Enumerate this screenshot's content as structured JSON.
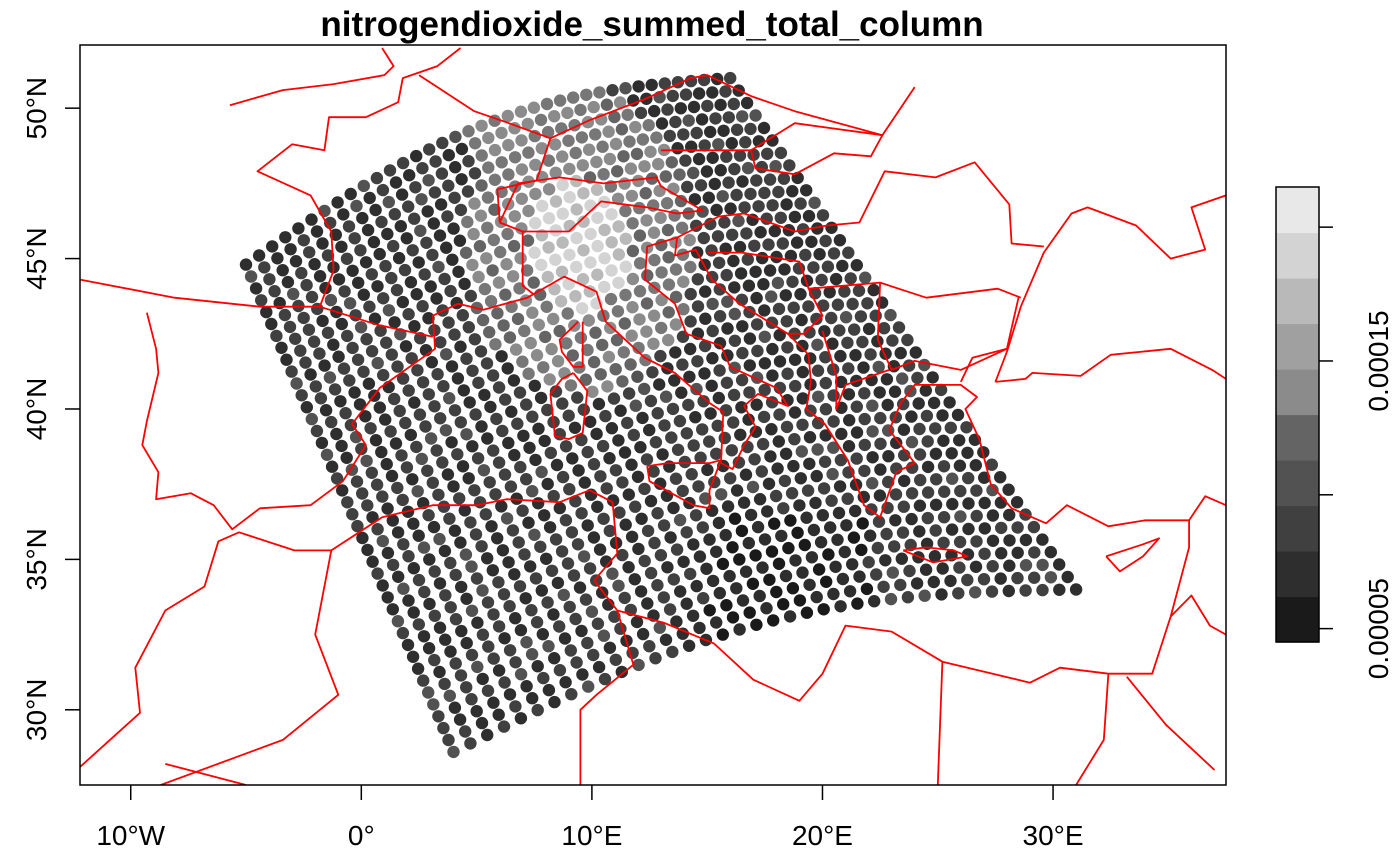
{
  "plot": {
    "title": "nitrogendioxide_summed_total_column",
    "x_ticks": [
      {
        "value": -10,
        "label": "10°W"
      },
      {
        "value": 0,
        "label": "0°"
      },
      {
        "value": 10,
        "label": "10°E"
      },
      {
        "value": 20,
        "label": "20°E"
      },
      {
        "value": 30,
        "label": "30°E"
      }
    ],
    "y_ticks": [
      {
        "value": 30,
        "label": "30°N"
      },
      {
        "value": 35,
        "label": "35°N"
      },
      {
        "value": 40,
        "label": "40°N"
      },
      {
        "value": 45,
        "label": "45°N"
      },
      {
        "value": 50,
        "label": "50°N"
      }
    ],
    "colorbar": {
      "ticks": [
        {
          "value": 5e-05,
          "label": "0.00005"
        },
        {
          "value": 0.0001,
          "label": ""
        },
        {
          "value": 0.00015,
          "label": "0.00015"
        },
        {
          "value": 0.0002,
          "label": ""
        }
      ]
    }
  },
  "chart_data": {
    "type": "scatter",
    "title": "nitrogendioxide_summed_total_column",
    "xlabel": "",
    "ylabel": "",
    "xlim": [
      -12.2,
      37.5
    ],
    "ylim": [
      27.5,
      52.1
    ],
    "grid": false,
    "colorbar": {
      "range": [
        4.5e-05,
        0.000215
      ],
      "levels": 10,
      "colors": [
        "#1a1a1a",
        "#2e2e2e",
        "#404040",
        "#525252",
        "#646464",
        "#777777",
        "#8b8b8b",
        "#a0a0a0",
        "#b9b9b9",
        "#d3d3d3",
        "#e8e8e8"
      ]
    },
    "coastline_color": "#ff0000",
    "swath_corners_lonlat": {
      "nw": [
        -5.0,
        44.8
      ],
      "ne": [
        16.0,
        51.0
      ],
      "se": [
        31.0,
        34.0
      ],
      "sw": [
        4.0,
        28.6
      ]
    },
    "swath_grid": {
      "rows": 42,
      "cols": 38
    }
  }
}
